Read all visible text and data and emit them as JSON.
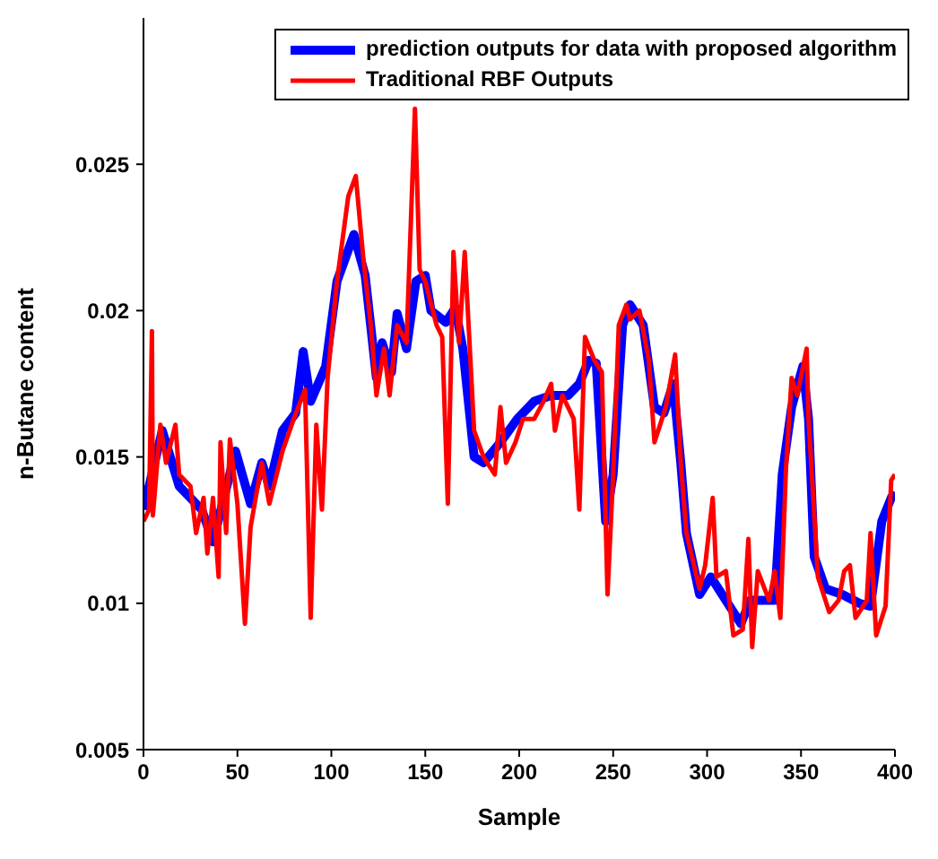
{
  "chart_data": {
    "type": "line",
    "xlabel": "Sample",
    "ylabel": "n-Butane content",
    "xlim": [
      0,
      400
    ],
    "xticks": [
      0,
      50,
      100,
      150,
      200,
      250,
      300,
      350,
      400
    ],
    "ylim": [
      0.005,
      0.03
    ],
    "yticks": [
      0.005,
      0.01,
      0.015,
      0.02,
      0.025
    ],
    "legend": "top right",
    "grid": false,
    "marker": "none",
    "line_style": "solid",
    "series": [
      {
        "name": "prediction outputs for data with proposed algorithm",
        "color": "#0000ff",
        "x": [
          0,
          10,
          19,
          31,
          37,
          49,
          57,
          63,
          67,
          74,
          81,
          85,
          89,
          97,
          103,
          112,
          118,
          124,
          127,
          132,
          135,
          140,
          145,
          150,
          153,
          161,
          166,
          170,
          176,
          181,
          190,
          199,
          208,
          217,
          226,
          232,
          237,
          241,
          246,
          250,
          255,
          259,
          266,
          269,
          272,
          277,
          282,
          286,
          289,
          296,
          302,
          308,
          318,
          323,
          330,
          336,
          340,
          345,
          351,
          354,
          357,
          363,
          372,
          381,
          387,
          393,
          398,
          400
        ],
        "values": [
          0.0132,
          0.0159,
          0.014,
          0.0132,
          0.0121,
          0.0152,
          0.0134,
          0.0148,
          0.014,
          0.0159,
          0.0165,
          0.0186,
          0.0169,
          0.0181,
          0.021,
          0.0226,
          0.0212,
          0.0177,
          0.0189,
          0.0179,
          0.0199,
          0.0187,
          0.021,
          0.0212,
          0.02,
          0.0196,
          0.0201,
          0.0187,
          0.015,
          0.0148,
          0.0155,
          0.0163,
          0.0169,
          0.0171,
          0.0171,
          0.0175,
          0.0183,
          0.0182,
          0.0128,
          0.0144,
          0.0195,
          0.0202,
          0.0195,
          0.0181,
          0.0167,
          0.0165,
          0.0175,
          0.0148,
          0.0124,
          0.0103,
          0.0109,
          0.0103,
          0.0093,
          0.0101,
          0.0101,
          0.0101,
          0.0144,
          0.0167,
          0.0181,
          0.0163,
          0.0116,
          0.0105,
          0.0103,
          0.01,
          0.0099,
          0.0128,
          0.0136,
          0.0138
        ]
      },
      {
        "name": "Traditional RBF Outputs",
        "color": "#ff0000",
        "x": [
          0,
          3,
          4.5,
          5,
          9,
          12,
          17,
          19,
          25,
          28,
          32,
          34,
          37,
          40,
          41,
          44,
          46,
          50,
          54,
          57,
          63,
          67,
          74,
          80,
          86,
          89,
          92,
          95,
          98,
          103,
          109,
          113,
          117,
          121,
          124,
          128,
          131,
          135,
          140,
          144.5,
          147,
          150,
          156,
          159,
          162,
          165,
          168,
          171,
          176,
          181,
          187,
          190,
          193,
          198,
          202,
          208,
          213,
          217,
          219,
          223,
          229,
          232,
          235,
          240,
          244,
          247,
          250,
          253,
          257,
          259,
          264,
          269,
          272,
          278,
          283,
          286,
          289,
          296,
          299,
          303,
          305,
          310,
          314,
          319,
          322,
          324,
          327,
          333,
          336,
          339,
          342,
          345,
          348,
          353,
          354,
          359,
          365,
          370,
          373,
          376,
          379,
          385,
          387,
          390,
          395,
          398,
          400
        ],
        "values": [
          0.0128,
          0.0132,
          0.0193,
          0.013,
          0.0161,
          0.0148,
          0.0161,
          0.0144,
          0.014,
          0.0124,
          0.0136,
          0.0117,
          0.0136,
          0.0109,
          0.0155,
          0.0124,
          0.0156,
          0.0134,
          0.0093,
          0.0126,
          0.0148,
          0.0134,
          0.0152,
          0.0163,
          0.0173,
          0.0095,
          0.0161,
          0.0132,
          0.0177,
          0.021,
          0.0239,
          0.0246,
          0.0218,
          0.0195,
          0.0171,
          0.0187,
          0.0171,
          0.0195,
          0.0189,
          0.0269,
          0.0214,
          0.021,
          0.0195,
          0.0191,
          0.0134,
          0.022,
          0.0189,
          0.022,
          0.0159,
          0.015,
          0.0144,
          0.0167,
          0.0148,
          0.0155,
          0.0163,
          0.0163,
          0.0169,
          0.0175,
          0.0159,
          0.0171,
          0.0163,
          0.0132,
          0.0191,
          0.0183,
          0.0179,
          0.0103,
          0.0144,
          0.0195,
          0.0202,
          0.0197,
          0.02,
          0.0183,
          0.0155,
          0.0167,
          0.0185,
          0.0148,
          0.0124,
          0.0105,
          0.0113,
          0.0136,
          0.0109,
          0.0111,
          0.0089,
          0.0091,
          0.0122,
          0.0085,
          0.0111,
          0.0101,
          0.0111,
          0.0095,
          0.0146,
          0.0177,
          0.0171,
          0.0187,
          0.0163,
          0.0109,
          0.0097,
          0.0101,
          0.0111,
          0.0113,
          0.0095,
          0.0101,
          0.0124,
          0.0089,
          0.0099,
          0.0142,
          0.0144
        ]
      }
    ]
  }
}
